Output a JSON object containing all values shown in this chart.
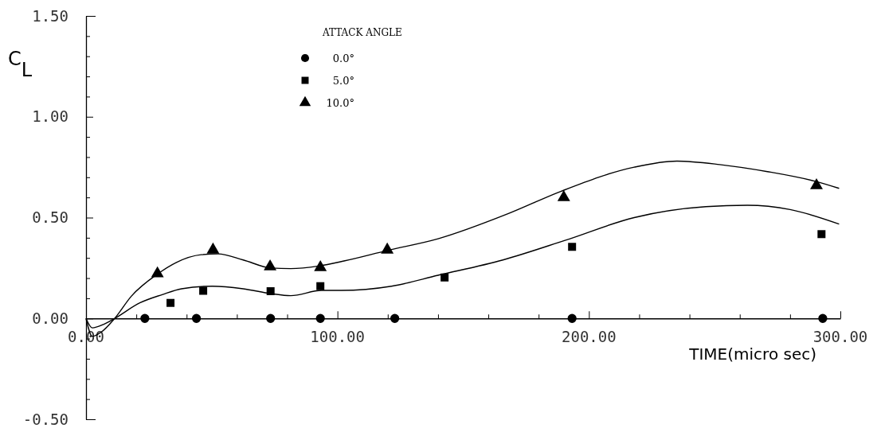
{
  "chart_data": {
    "type": "scatter",
    "ylabel": "C$_{L}$",
    "xlabel": "TIME(micro sec)",
    "legend_title": "ATTACK ANGLE",
    "legend": "top",
    "grid": false,
    "xlim": [
      0,
      300
    ],
    "ylim": [
      -0.5,
      1.5
    ],
    "xticks": [
      {
        "value": 0,
        "label": "0.00"
      },
      {
        "value": 20,
        "label": null
      },
      {
        "value": 40,
        "label": null
      },
      {
        "value": 60,
        "label": null
      },
      {
        "value": 80,
        "label": null
      },
      {
        "value": 100,
        "label": "100.00"
      },
      {
        "value": 120,
        "label": null
      },
      {
        "value": 140,
        "label": null
      },
      {
        "value": 160,
        "label": null
      },
      {
        "value": 180,
        "label": null
      },
      {
        "value": 200,
        "label": "200.00"
      },
      {
        "value": 220,
        "label": null
      },
      {
        "value": 240,
        "label": null
      },
      {
        "value": 260,
        "label": null
      },
      {
        "value": 280,
        "label": null
      },
      {
        "value": 300,
        "label": "300.00"
      }
    ],
    "yticks": [
      {
        "value": -0.5,
        "label": "-0.50"
      },
      {
        "value": -0.4,
        "label": null
      },
      {
        "value": -0.3,
        "label": null
      },
      {
        "value": -0.2,
        "label": null
      },
      {
        "value": -0.1,
        "label": null
      },
      {
        "value": 0,
        "label": "0.00"
      },
      {
        "value": 0.1,
        "label": null
      },
      {
        "value": 0.2,
        "label": null
      },
      {
        "value": 0.3,
        "label": null
      },
      {
        "value": 0.4,
        "label": null
      },
      {
        "value": 0.5,
        "label": "0.50"
      },
      {
        "value": 0.6,
        "label": null
      },
      {
        "value": 0.7,
        "label": null
      },
      {
        "value": 0.8,
        "label": null
      },
      {
        "value": 0.9,
        "label": null
      },
      {
        "value": 1.0,
        "label": "1.00"
      },
      {
        "value": 1.1,
        "label": null
      },
      {
        "value": 1.2,
        "label": null
      },
      {
        "value": 1.3,
        "label": null
      },
      {
        "value": 1.4,
        "label": null
      },
      {
        "value": 1.5,
        "label": "1.50"
      }
    ],
    "series": [
      {
        "name": "0.0°",
        "marker": "circle",
        "color": "#000000",
        "x": [
          23.4,
          43.9,
          73.4,
          93.2,
          122.8,
          193.3,
          293
        ],
        "values": [
          0,
          0,
          0,
          0,
          0,
          0,
          0
        ]
      },
      {
        "name": "5.0°",
        "marker": "square",
        "color": "#000000",
        "x": [
          33.6,
          46.6,
          73.4,
          93.2,
          142.6,
          193.3,
          292.5
        ],
        "values": [
          0.077,
          0.137,
          0.135,
          0.16,
          0.203,
          0.355,
          0.418
        ]
      },
      {
        "name": "10.0°",
        "marker": "triangle",
        "color": "#000000",
        "x": [
          28.4,
          50.5,
          73.2,
          93.2,
          119.8,
          190,
          290.5
        ],
        "values": [
          0.222,
          0.34,
          0.257,
          0.253,
          0.34,
          0.6,
          0.659
        ]
      },
      {
        "type": "line",
        "line_style": "solid",
        "color": "#000000",
        "x": [
          0,
          2.5,
          5.8,
          11.4,
          18,
          28.4,
          35.8,
          45.8,
          52.5,
          62.5,
          73.6,
          81.4,
          92.5,
          102.6,
          119.8,
          140,
          168,
          188.8,
          218,
          235,
          252,
          271,
          290,
          299.5
        ],
        "values": [
          0,
          -0.089,
          -0.07,
          0,
          0.11,
          0.22,
          0.277,
          0.316,
          0.32,
          0.29,
          0.25,
          0.247,
          0.26,
          0.285,
          0.337,
          0.395,
          0.52,
          0.63,
          0.75,
          0.78,
          0.763,
          0.728,
          0.68,
          0.645
        ]
      },
      {
        "type": "line",
        "line_style": "solid",
        "color": "#000000",
        "x": [
          0,
          2.5,
          6.9,
          11.4,
          21.4,
          30.3,
          38,
          50.3,
          62.5,
          73.6,
          81.4,
          93.7,
          101.5,
          121.5,
          140,
          165.8,
          190.5,
          218,
          246.5,
          263,
          280,
          299.5
        ],
        "values": [
          0,
          -0.047,
          -0.03,
          0,
          0.077,
          0.118,
          0.147,
          0.16,
          0.147,
          0.123,
          0.113,
          0.139,
          0.139,
          0.16,
          0.214,
          0.29,
          0.387,
          0.5,
          0.554,
          0.561,
          0.54,
          0.468
        ]
      }
    ]
  }
}
